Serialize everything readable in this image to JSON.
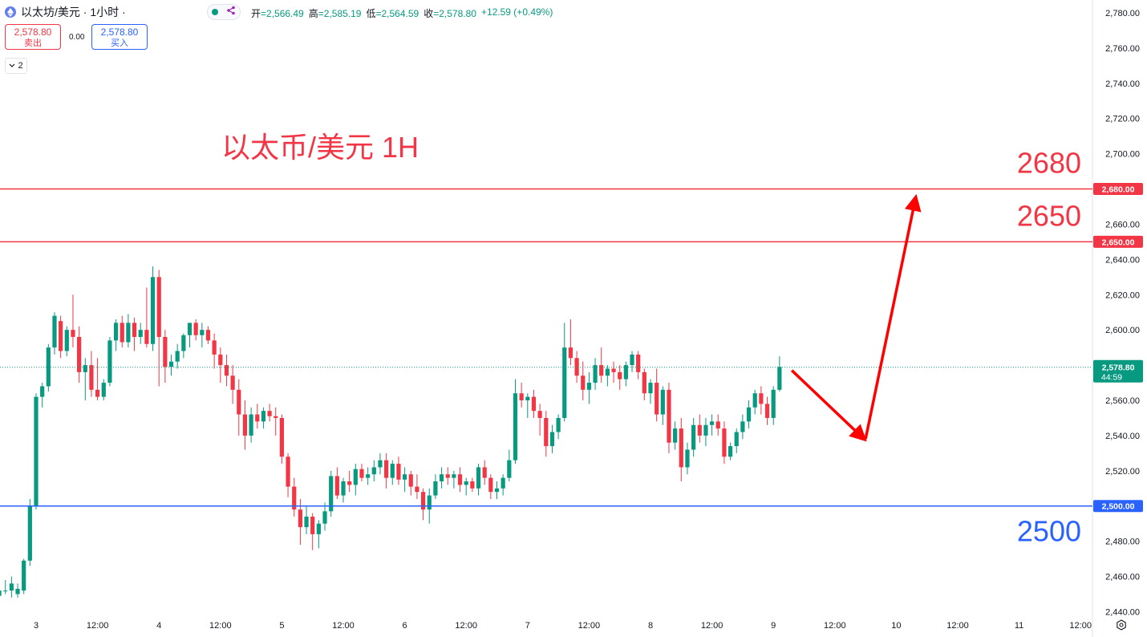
{
  "header": {
    "symbol": "以太坊/美元 · 1小时 ·",
    "open_label": "开",
    "open_value": "=2,566.49",
    "high_label": "高",
    "high_value": "=2,585.19",
    "low_label": "低",
    "low_value": "=2,564.59",
    "close_label": "收",
    "close_value": "=2,578.80",
    "change": "+12.59 (+0.49%)"
  },
  "trade": {
    "sell_price": "2,578.80",
    "sell_label": "卖出",
    "spread": "0.00",
    "buy_price": "2,578.80",
    "buy_label": "买入",
    "collapse_count": "2"
  },
  "colors": {
    "up": "#089981",
    "down": "#f23645",
    "resistance": "#f23645",
    "support": "#2962ff",
    "arrow": "#ff0000",
    "current_price_tag": "#089981"
  },
  "icons": {
    "symbol_icon": "ethereum-icon",
    "indicator_icon": "share-icon",
    "settings_icon": "gear-icon"
  },
  "chart_data": {
    "type": "candlestick",
    "title": "以太币/美元 1H",
    "xlabel": "",
    "ylabel": "",
    "ylim": [
      2435,
      2790
    ],
    "y_ticks": [
      "2,780.00",
      "2,760.00",
      "2,740.00",
      "2,720.00",
      "2,700.00",
      "2,680.00",
      "2,660.00",
      "2,640.00",
      "2,620.00",
      "2,600.00",
      "2,580.00",
      "2,560.00",
      "2,540.00",
      "2,520.00",
      "2,500.00",
      "2,480.00",
      "2,460.00",
      "2,440.00"
    ],
    "x_ticks": [
      {
        "label": "3",
        "bar": 6
      },
      {
        "label": "12:00",
        "bar": 16
      },
      {
        "label": "4",
        "bar": 26
      },
      {
        "label": "12:00",
        "bar": 36
      },
      {
        "label": "5",
        "bar": 46
      },
      {
        "label": "12:00",
        "bar": 56
      },
      {
        "label": "6",
        "bar": 66
      },
      {
        "label": "12:00",
        "bar": 76
      },
      {
        "label": "7",
        "bar": 86
      },
      {
        "label": "12:00",
        "bar": 96
      },
      {
        "label": "8",
        "bar": 106
      },
      {
        "label": "12:00",
        "bar": 116
      },
      {
        "label": "9",
        "bar": 126
      },
      {
        "label": "12:00",
        "bar": 136
      },
      {
        "label": "10",
        "bar": 146
      },
      {
        "label": "12:00",
        "bar": 156
      },
      {
        "label": "11",
        "bar": 166
      },
      {
        "label": "12:00",
        "bar": 176
      }
    ],
    "candles": [
      [
        2449,
        2455,
        2447,
        2452
      ],
      [
        2452,
        2458,
        2450,
        2452
      ],
      [
        2452,
        2460,
        2448,
        2456
      ],
      [
        2450,
        2456,
        2448,
        2453
      ],
      [
        2452,
        2470,
        2450,
        2469
      ],
      [
        2469,
        2504,
        2466,
        2500
      ],
      [
        2500,
        2564,
        2498,
        2562
      ],
      [
        2562,
        2570,
        2556,
        2568
      ],
      [
        2568,
        2592,
        2565,
        2590
      ],
      [
        2590,
        2610,
        2586,
        2608
      ],
      [
        2605,
        2608,
        2584,
        2588
      ],
      [
        2588,
        2602,
        2585,
        2600
      ],
      [
        2600,
        2620,
        2590,
        2596
      ],
      [
        2596,
        2602,
        2570,
        2576
      ],
      [
        2576,
        2584,
        2560,
        2580
      ],
      [
        2580,
        2588,
        2562,
        2566
      ],
      [
        2566,
        2584,
        2560,
        2562
      ],
      [
        2562,
        2572,
        2560,
        2570
      ],
      [
        2570,
        2596,
        2568,
        2594
      ],
      [
        2594,
        2606,
        2588,
        2604
      ],
      [
        2604,
        2608,
        2590,
        2593
      ],
      [
        2593,
        2609,
        2590,
        2604
      ],
      [
        2604,
        2607,
        2588,
        2596
      ],
      [
        2596,
        2604,
        2592,
        2600
      ],
      [
        2600,
        2624,
        2590,
        2592
      ],
      [
        2592,
        2636,
        2588,
        2630
      ],
      [
        2630,
        2634,
        2568,
        2596
      ],
      [
        2596,
        2600,
        2570,
        2579
      ],
      [
        2579,
        2586,
        2574,
        2582
      ],
      [
        2582,
        2592,
        2578,
        2588
      ],
      [
        2588,
        2598,
        2584,
        2597
      ],
      [
        2597,
        2604,
        2590,
        2604
      ],
      [
        2604,
        2606,
        2594,
        2597
      ],
      [
        2597,
        2604,
        2590,
        2600
      ],
      [
        2600,
        2602,
        2592,
        2594
      ],
      [
        2594,
        2598,
        2578,
        2586
      ],
      [
        2586,
        2590,
        2570,
        2580
      ],
      [
        2580,
        2586,
        2568,
        2574
      ],
      [
        2574,
        2580,
        2558,
        2566
      ],
      [
        2566,
        2572,
        2540,
        2552
      ],
      [
        2552,
        2560,
        2532,
        2540
      ],
      [
        2540,
        2556,
        2536,
        2552
      ],
      [
        2552,
        2558,
        2544,
        2548
      ],
      [
        2548,
        2556,
        2544,
        2554
      ],
      [
        2554,
        2558,
        2548,
        2551
      ],
      [
        2551,
        2556,
        2540,
        2550
      ],
      [
        2550,
        2552,
        2524,
        2528
      ],
      [
        2528,
        2530,
        2505,
        2511
      ],
      [
        2511,
        2516,
        2494,
        2498
      ],
      [
        2498,
        2504,
        2478,
        2488
      ],
      [
        2488,
        2500,
        2484,
        2494
      ],
      [
        2494,
        2496,
        2475,
        2484
      ],
      [
        2484,
        2492,
        2476,
        2490
      ],
      [
        2490,
        2502,
        2486,
        2497
      ],
      [
        2497,
        2520,
        2494,
        2517
      ],
      [
        2517,
        2522,
        2504,
        2506
      ],
      [
        2506,
        2516,
        2502,
        2514
      ],
      [
        2514,
        2520,
        2508,
        2512
      ],
      [
        2512,
        2524,
        2506,
        2521
      ],
      [
        2521,
        2524,
        2514,
        2516
      ],
      [
        2516,
        2522,
        2512,
        2518
      ],
      [
        2518,
        2526,
        2514,
        2522
      ],
      [
        2522,
        2530,
        2518,
        2526
      ],
      [
        2526,
        2530,
        2510,
        2516
      ],
      [
        2516,
        2526,
        2512,
        2524
      ],
      [
        2524,
        2528,
        2512,
        2515
      ],
      [
        2515,
        2522,
        2508,
        2518
      ],
      [
        2518,
        2520,
        2506,
        2511
      ],
      [
        2511,
        2518,
        2504,
        2508
      ],
      [
        2508,
        2510,
        2492,
        2498
      ],
      [
        2498,
        2510,
        2490,
        2506
      ],
      [
        2506,
        2518,
        2504,
        2514
      ],
      [
        2514,
        2522,
        2510,
        2518
      ],
      [
        2518,
        2522,
        2512,
        2516
      ],
      [
        2516,
        2520,
        2510,
        2518
      ],
      [
        2518,
        2522,
        2508,
        2512
      ],
      [
        2512,
        2516,
        2506,
        2514
      ],
      [
        2514,
        2516,
        2508,
        2510
      ],
      [
        2510,
        2524,
        2506,
        2522
      ],
      [
        2522,
        2526,
        2512,
        2516
      ],
      [
        2516,
        2518,
        2504,
        2508
      ],
      [
        2508,
        2514,
        2504,
        2510
      ],
      [
        2510,
        2518,
        2506,
        2516
      ],
      [
        2516,
        2532,
        2514,
        2526
      ],
      [
        2526,
        2572,
        2524,
        2564
      ],
      [
        2564,
        2570,
        2556,
        2560
      ],
      [
        2560,
        2564,
        2550,
        2562
      ],
      [
        2562,
        2566,
        2550,
        2554
      ],
      [
        2554,
        2558,
        2540,
        2550
      ],
      [
        2550,
        2554,
        2528,
        2534
      ],
      [
        2534,
        2546,
        2530,
        2542
      ],
      [
        2542,
        2552,
        2538,
        2550
      ],
      [
        2550,
        2604,
        2548,
        2590
      ],
      [
        2590,
        2606,
        2580,
        2584
      ],
      [
        2584,
        2588,
        2570,
        2574
      ],
      [
        2574,
        2582,
        2560,
        2566
      ],
      [
        2566,
        2576,
        2558,
        2570
      ],
      [
        2570,
        2584,
        2566,
        2580
      ],
      [
        2580,
        2590,
        2570,
        2574
      ],
      [
        2574,
        2580,
        2568,
        2578
      ],
      [
        2578,
        2582,
        2570,
        2576
      ],
      [
        2576,
        2580,
        2566,
        2572
      ],
      [
        2572,
        2582,
        2568,
        2580
      ],
      [
        2580,
        2588,
        2576,
        2586
      ],
      [
        2586,
        2588,
        2572,
        2576
      ],
      [
        2576,
        2578,
        2560,
        2564
      ],
      [
        2564,
        2572,
        2558,
        2570
      ],
      [
        2570,
        2578,
        2548,
        2552
      ],
      [
        2552,
        2568,
        2546,
        2566
      ],
      [
        2566,
        2570,
        2530,
        2536
      ],
      [
        2536,
        2548,
        2532,
        2544
      ],
      [
        2544,
        2550,
        2514,
        2522
      ],
      [
        2522,
        2536,
        2518,
        2532
      ],
      [
        2532,
        2550,
        2528,
        2546
      ],
      [
        2546,
        2552,
        2536,
        2540
      ],
      [
        2540,
        2550,
        2534,
        2546
      ],
      [
        2546,
        2552,
        2540,
        2548
      ],
      [
        2548,
        2552,
        2540,
        2544
      ],
      [
        2544,
        2548,
        2524,
        2528
      ],
      [
        2528,
        2536,
        2526,
        2534
      ],
      [
        2534,
        2544,
        2530,
        2542
      ],
      [
        2542,
        2552,
        2538,
        2548
      ],
      [
        2548,
        2560,
        2544,
        2556
      ],
      [
        2556,
        2566,
        2552,
        2564
      ],
      [
        2564,
        2568,
        2552,
        2558
      ],
      [
        2558,
        2562,
        2546,
        2550
      ],
      [
        2550,
        2568,
        2546,
        2566
      ],
      [
        2566,
        2585,
        2565,
        2579
      ]
    ],
    "annotations": {
      "resistance_levels": [
        {
          "value": 2680,
          "label": "2680",
          "tag": "2,680.00"
        },
        {
          "value": 2650,
          "label": "2650",
          "tag": "2,650.00"
        }
      ],
      "support_levels": [
        {
          "value": 2500,
          "label": "2500",
          "tag": "2,500.00"
        }
      ],
      "current_price": {
        "value": 2578.8,
        "tag": "2,578.80",
        "countdown": "44:59"
      },
      "projection_path": [
        {
          "bar": 129,
          "value": 2577
        },
        {
          "bar": 141,
          "value": 2538
        },
        {
          "bar": 149,
          "value": 2677
        }
      ]
    }
  }
}
